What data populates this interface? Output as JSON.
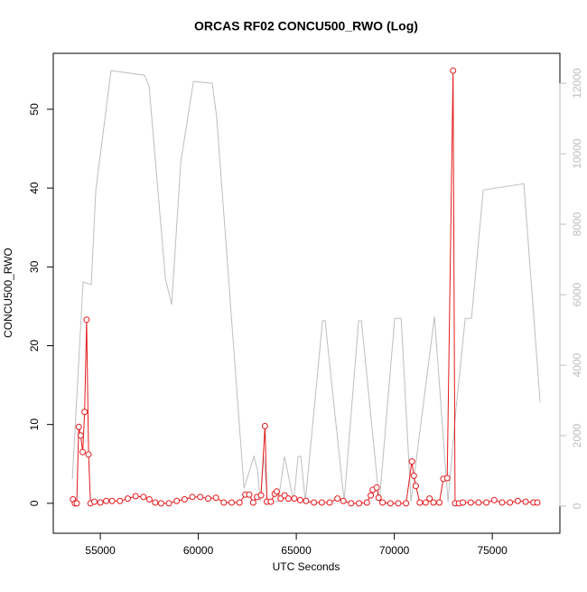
{
  "chart_data": {
    "type": "line",
    "title": "ORCAS RF02 CONCU500_RWO (Log)",
    "x_label": "UTC Seconds",
    "y_label": "CONCU500_RWO",
    "xlim": [
      52600,
      78450
    ],
    "xticks": [
      55000,
      60000,
      65000,
      70000,
      75000
    ],
    "ylim": [
      -3.8,
      57.1
    ],
    "yticks": [
      0,
      10,
      20,
      30,
      40,
      50
    ],
    "y2lim": [
      -770,
      12850
    ],
    "y2ticks": [
      0,
      2000,
      4000,
      6000,
      8000,
      10000,
      12000
    ],
    "series": [
      {
        "name": "CONCU500_RWO",
        "color": "#e41a1c",
        "markers": true,
        "x": [
          53600,
          53700,
          53800,
          53900,
          54000,
          54100,
          54200,
          54300,
          54400,
          54500,
          54700,
          55000,
          55300,
          55600,
          56000,
          56400,
          56800,
          57200,
          57500,
          57800,
          58100,
          58500,
          58900,
          59300,
          59700,
          60100,
          60500,
          60900,
          61300,
          61700,
          62100,
          62400,
          62600,
          62800,
          63000,
          63200,
          63400,
          63500,
          63700,
          63900,
          64000,
          64200,
          64400,
          64600,
          64900,
          65200,
          65500,
          65900,
          66300,
          66700,
          67100,
          67400,
          67800,
          68200,
          68600,
          68800,
          68900,
          69100,
          69200,
          69400,
          69800,
          70200,
          70600,
          70900,
          71000,
          71100,
          71300,
          71600,
          71800,
          72000,
          72300,
          72500,
          72700,
          73000,
          73100,
          73300,
          73500,
          73900,
          74300,
          74700,
          75100,
          75500,
          75900,
          76300,
          76700,
          77100,
          77300
        ],
        "values": [
          0.5,
          0,
          0,
          9.7,
          8.6,
          6.5,
          11.6,
          23.3,
          6.2,
          0,
          0.2,
          0.1,
          0.3,
          0.3,
          0.3,
          0.6,
          0.9,
          0.8,
          0.5,
          0.1,
          0,
          0,
          0.3,
          0.5,
          0.8,
          0.8,
          0.6,
          0.7,
          0.1,
          0.1,
          0.1,
          1.1,
          1.1,
          0.1,
          0.8,
          1,
          9.8,
          0.2,
          0.2,
          1.2,
          1.5,
          0.6,
          1,
          0.6,
          0.6,
          0.4,
          0.3,
          0.1,
          0.1,
          0.1,
          0.6,
          0.3,
          0,
          0,
          0.1,
          1,
          1.7,
          2,
          0.7,
          0.1,
          0,
          0,
          0,
          5.3,
          3.5,
          2.2,
          0.1,
          0.1,
          0.6,
          0.1,
          0.1,
          3.1,
          3.2,
          54.9,
          0,
          0,
          0.1,
          0.1,
          0.1,
          0.1,
          0.4,
          0.1,
          0.1,
          0.3,
          0.2,
          0.1,
          0.1
        ]
      },
      {
        "color": "#bebebe",
        "axis": "y2",
        "x": [
          53570,
          54120,
          54540,
          54770,
          55550,
          57260,
          57490,
          58320,
          58640,
          59100,
          59750,
          60710,
          60940,
          62330,
          62840,
          63020,
          63160,
          63340,
          63530,
          64080,
          64400,
          64540,
          64860,
          65090,
          65230,
          65460,
          66340,
          66470,
          67440,
          68180,
          68320,
          69240,
          70020,
          70350,
          70850,
          72050,
          72740,
          73160,
          73620,
          73940,
          74540,
          76610,
          77440
        ],
        "values": [
          770,
          6360,
          6290,
          8970,
          12360,
          12230,
          11920,
          6460,
          5720,
          9740,
          12050,
          12000,
          11030,
          510,
          1410,
          1030,
          130,
          1410,
          130,
          130,
          1410,
          1030,
          130,
          1410,
          1410,
          130,
          5260,
          5260,
          130,
          5260,
          5260,
          130,
          5330,
          5330,
          130,
          5380,
          130,
          2820,
          5330,
          5330,
          8970,
          9150,
          2950
        ]
      }
    ]
  }
}
